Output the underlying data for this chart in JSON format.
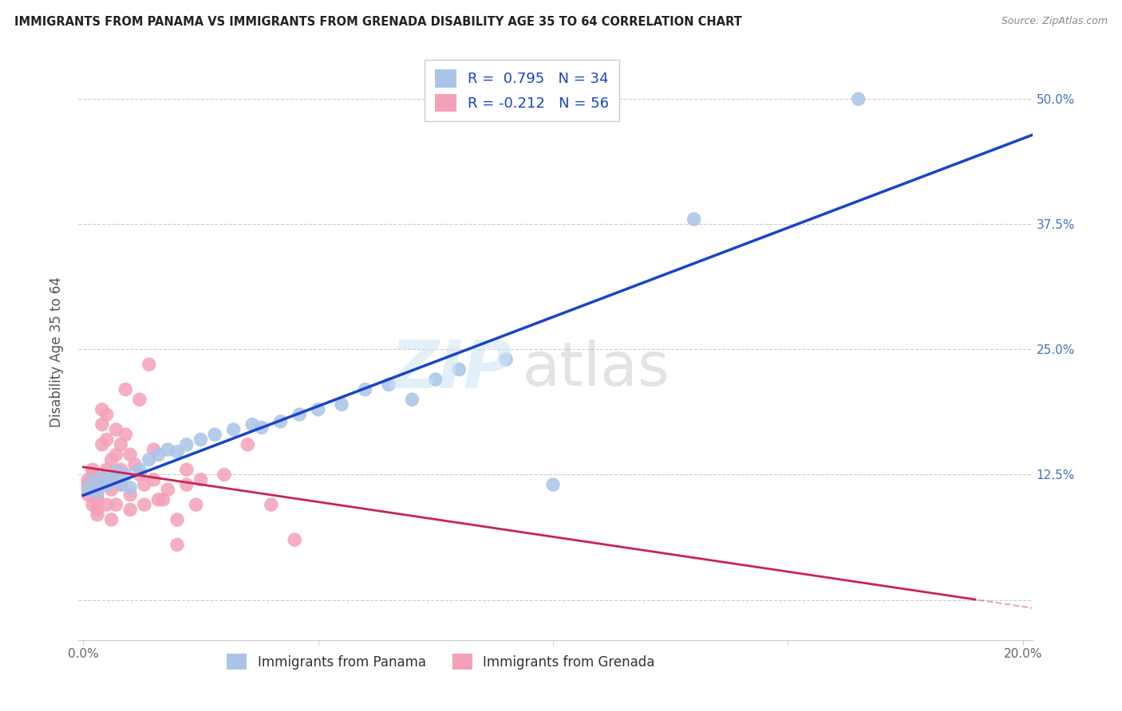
{
  "title": "IMMIGRANTS FROM PANAMA VS IMMIGRANTS FROM GRENADA DISABILITY AGE 35 TO 64 CORRELATION CHART",
  "source": "Source: ZipAtlas.com",
  "ylabel": "Disability Age 35 to 64",
  "x_label_panama": "Immigrants from Panama",
  "x_label_grenada": "Immigrants from Grenada",
  "xlim": [
    -0.001,
    0.202
  ],
  "ylim": [
    -0.04,
    0.535
  ],
  "yticks": [
    0.0,
    0.125,
    0.25,
    0.375,
    0.5
  ],
  "yticklabels_right": [
    "",
    "12.5%",
    "25.0%",
    "37.5%",
    "50.0%"
  ],
  "xticks": [
    0.0,
    0.05,
    0.1,
    0.15,
    0.2
  ],
  "xticklabels": [
    "0.0%",
    "",
    "",
    "",
    "20.0%"
  ],
  "grid_color": "#cccccc",
  "background_color": "#ffffff",
  "panama_color": "#aac4e8",
  "grenada_color": "#f4a0b8",
  "panama_line_color": "#1a44cc",
  "grenada_line_color": "#cc2255",
  "right_tick_color": "#4472c4",
  "legend_text_color": "#1a44cc",
  "R_panama": 0.795,
  "N_panama": 34,
  "R_grenada": -0.212,
  "N_grenada": 56,
  "panama_points_x": [
    0.001,
    0.002,
    0.003,
    0.004,
    0.005,
    0.006,
    0.007,
    0.008,
    0.009,
    0.01,
    0.012,
    0.014,
    0.016,
    0.018,
    0.02,
    0.022,
    0.025,
    0.028,
    0.032,
    0.036,
    0.038,
    0.042,
    0.046,
    0.05,
    0.055,
    0.06,
    0.065,
    0.07,
    0.075,
    0.08,
    0.09,
    0.1,
    0.13,
    0.165
  ],
  "panama_points_y": [
    0.11,
    0.118,
    0.108,
    0.122,
    0.115,
    0.12,
    0.128,
    0.115,
    0.125,
    0.112,
    0.13,
    0.14,
    0.145,
    0.15,
    0.148,
    0.155,
    0.16,
    0.165,
    0.17,
    0.175,
    0.172,
    0.178,
    0.185,
    0.19,
    0.195,
    0.21,
    0.215,
    0.2,
    0.22,
    0.23,
    0.24,
    0.115,
    0.38,
    0.5
  ],
  "grenada_points_x": [
    0.001,
    0.001,
    0.001,
    0.002,
    0.002,
    0.002,
    0.002,
    0.003,
    0.003,
    0.003,
    0.003,
    0.003,
    0.004,
    0.004,
    0.004,
    0.004,
    0.005,
    0.005,
    0.005,
    0.005,
    0.006,
    0.006,
    0.006,
    0.006,
    0.007,
    0.007,
    0.007,
    0.008,
    0.008,
    0.008,
    0.009,
    0.009,
    0.01,
    0.01,
    0.01,
    0.011,
    0.012,
    0.012,
    0.013,
    0.013,
    0.014,
    0.015,
    0.015,
    0.016,
    0.017,
    0.018,
    0.02,
    0.02,
    0.022,
    0.022,
    0.024,
    0.025,
    0.03,
    0.035,
    0.04,
    0.045
  ],
  "grenada_points_y": [
    0.115,
    0.12,
    0.105,
    0.11,
    0.13,
    0.125,
    0.095,
    0.1,
    0.115,
    0.105,
    0.09,
    0.085,
    0.12,
    0.175,
    0.155,
    0.19,
    0.185,
    0.16,
    0.13,
    0.095,
    0.14,
    0.12,
    0.11,
    0.08,
    0.145,
    0.17,
    0.095,
    0.155,
    0.13,
    0.115,
    0.165,
    0.21,
    0.145,
    0.105,
    0.09,
    0.135,
    0.2,
    0.125,
    0.115,
    0.095,
    0.235,
    0.12,
    0.15,
    0.1,
    0.1,
    0.11,
    0.08,
    0.055,
    0.115,
    0.13,
    0.095,
    0.12,
    0.125,
    0.155,
    0.095,
    0.06
  ]
}
